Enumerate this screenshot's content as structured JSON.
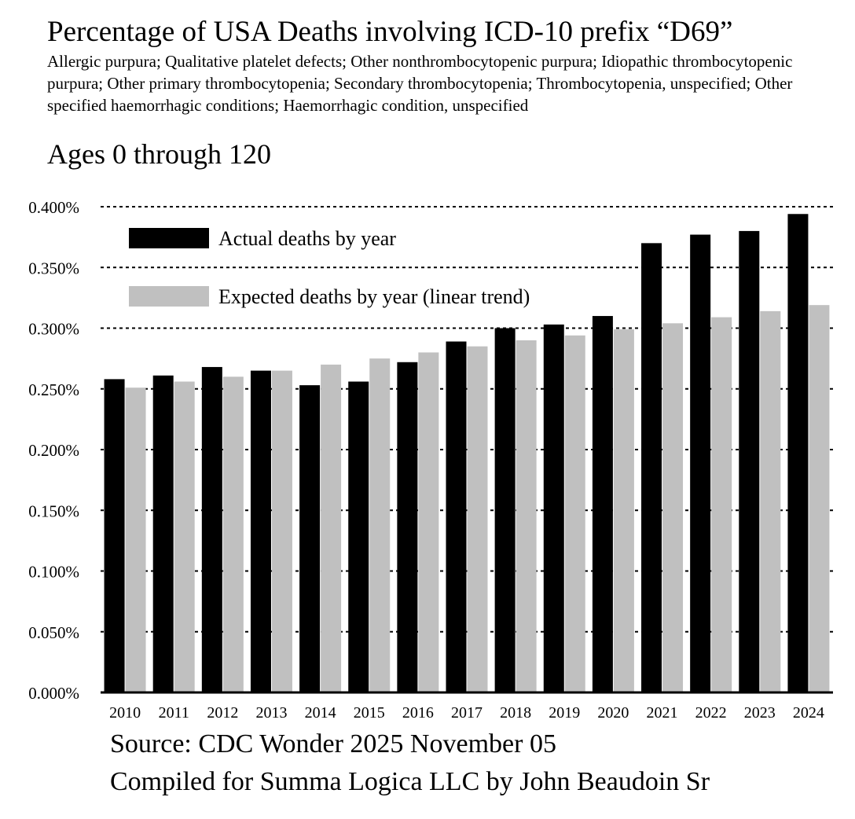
{
  "title": "Percentage of USA Deaths involving ICD-10 prefix “D69”",
  "subtitle": "Allergic purpura; Qualitative platelet defects; Other nonthrombocytopenic purpura; Idiopathic thrombocytopenic purpura; Other primary thrombocytopenia; Secondary thrombocytopenia; Thrombocytopenia, unspecified; Other specified haemorrhagic conditions; Haemorrhagic condition, unspecified",
  "ages_label": "Ages 0 through 120",
  "footer": {
    "source": "Source: CDC Wonder 2025 November 05",
    "compiled": "Compiled for Summa Logica LLC by John Beaudoin Sr"
  },
  "colors": {
    "actual": "#000000",
    "expected": "#c0c0c0",
    "grid": "#000000"
  },
  "chart_data": {
    "type": "bar",
    "categories": [
      "2010",
      "2011",
      "2012",
      "2013",
      "2014",
      "2015",
      "2016",
      "2017",
      "2018",
      "2019",
      "2020",
      "2021",
      "2022",
      "2023",
      "2024"
    ],
    "series": [
      {
        "name": "Actual deaths by year",
        "color": "#000000",
        "values": [
          0.258,
          0.261,
          0.268,
          0.265,
          0.253,
          0.256,
          0.272,
          0.289,
          0.3,
          0.303,
          0.31,
          0.37,
          0.377,
          0.38,
          0.394
        ]
      },
      {
        "name": "Expected deaths by year (linear trend)",
        "color": "#c0c0c0",
        "values": [
          0.251,
          0.256,
          0.26,
          0.265,
          0.27,
          0.275,
          0.28,
          0.285,
          0.29,
          0.294,
          0.299,
          0.304,
          0.309,
          0.314,
          0.319
        ]
      }
    ],
    "ylim": [
      0,
      0.4
    ],
    "yticks": [
      0.0,
      0.05,
      0.1,
      0.15,
      0.2,
      0.25,
      0.3,
      0.35,
      0.4
    ],
    "ytick_labels": [
      "0.000%",
      "0.050%",
      "0.100%",
      "0.150%",
      "0.200%",
      "0.250%",
      "0.300%",
      "0.350%",
      "0.400%"
    ],
    "grid": "dotted horizontal",
    "legend_placement": "top-left",
    "xlabel": "",
    "ylabel": ""
  }
}
